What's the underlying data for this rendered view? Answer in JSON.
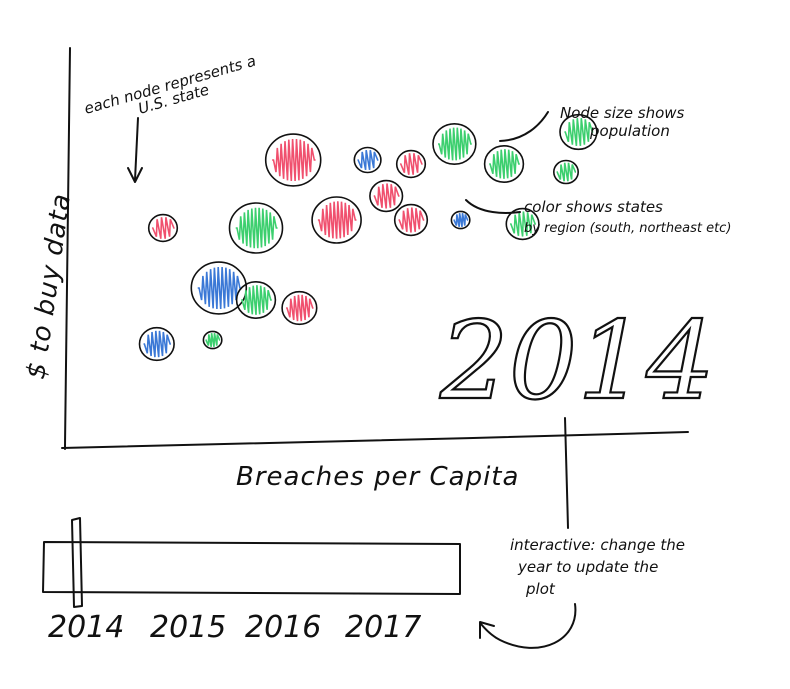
{
  "chart_data": {
    "type": "scatter",
    "title": "",
    "xlabel": "Breaches per Capita",
    "ylabel": "$ to buy data",
    "year_label": "2014",
    "points": [
      {
        "x": 0.15,
        "y": 0.55,
        "size": 14,
        "region": "red"
      },
      {
        "x": 0.36,
        "y": 0.72,
        "size": 27,
        "region": "red"
      },
      {
        "x": 0.3,
        "y": 0.55,
        "size": 26,
        "region": "green"
      },
      {
        "x": 0.43,
        "y": 0.57,
        "size": 24,
        "region": "red"
      },
      {
        "x": 0.24,
        "y": 0.4,
        "size": 27,
        "region": "blue"
      },
      {
        "x": 0.3,
        "y": 0.37,
        "size": 19,
        "region": "green"
      },
      {
        "x": 0.37,
        "y": 0.35,
        "size": 17,
        "region": "red"
      },
      {
        "x": 0.14,
        "y": 0.26,
        "size": 17,
        "region": "blue"
      },
      {
        "x": 0.23,
        "y": 0.27,
        "size": 9,
        "region": "green"
      },
      {
        "x": 0.51,
        "y": 0.63,
        "size": 16,
        "region": "red"
      },
      {
        "x": 0.48,
        "y": 0.72,
        "size": 13,
        "region": "blue"
      },
      {
        "x": 0.55,
        "y": 0.71,
        "size": 14,
        "region": "red"
      },
      {
        "x": 0.62,
        "y": 0.76,
        "size": 21,
        "region": "green"
      },
      {
        "x": 0.7,
        "y": 0.71,
        "size": 19,
        "region": "green"
      },
      {
        "x": 0.55,
        "y": 0.57,
        "size": 16,
        "region": "red"
      },
      {
        "x": 0.63,
        "y": 0.57,
        "size": 9,
        "region": "blue"
      },
      {
        "x": 0.73,
        "y": 0.56,
        "size": 16,
        "region": "green"
      },
      {
        "x": 0.82,
        "y": 0.79,
        "size": 18,
        "region": "green"
      },
      {
        "x": 0.8,
        "y": 0.69,
        "size": 12,
        "region": "green"
      }
    ],
    "annotations": {
      "node": "each node represents a U.S. state",
      "size": "Node size shows population",
      "color": "color shows states by region (south, northeast etc)",
      "slider": "interactive: change the year to update the plot"
    },
    "slider": {
      "years": [
        "2014",
        "2015",
        "2016",
        "2017"
      ],
      "selected": "2014"
    },
    "colors": {
      "red": "#f0506e",
      "green": "#3ccf6e",
      "blue": "#3a78d6",
      "ink": "#111111"
    }
  }
}
